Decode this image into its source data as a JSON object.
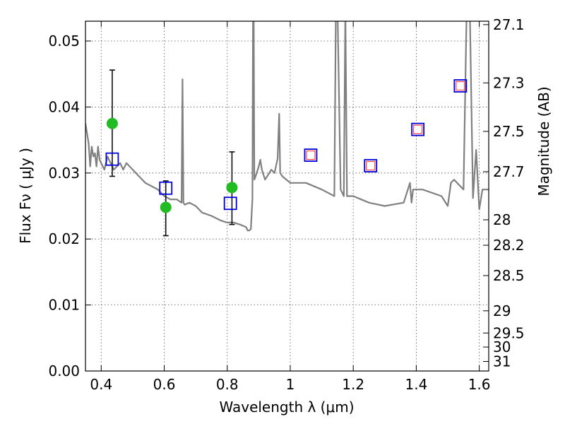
{
  "chart_data": {
    "type": "scatter",
    "title": "",
    "xlabel": "Wavelength  λ (μm)",
    "ylabel": "Flux  Fν  ( μJy )",
    "y2label": "Magnitude (AB)",
    "xlim": [
      0.35,
      1.63
    ],
    "ylim": [
      0.0,
      0.053
    ],
    "grid": true,
    "x_ticks": [
      0.4,
      0.6,
      0.8,
      1.0,
      1.2,
      1.4,
      1.6
    ],
    "x_tick_labels": [
      "0.4",
      "0.6",
      "0.8",
      "1",
      "1.2",
      "1.4",
      "1.6"
    ],
    "y_ticks": [
      0.0,
      0.01,
      0.02,
      0.03,
      0.04,
      0.05
    ],
    "y_tick_labels": [
      "0.00",
      "0.01",
      "0.02",
      "0.03",
      "0.04",
      "0.05"
    ],
    "y2_tick_labels": [
      "27.1",
      "27.3",
      "27.5",
      "27.7",
      "28",
      "28.2",
      "28.5",
      "29",
      "29.5",
      "30",
      "31"
    ],
    "series": [
      {
        "kind": "line",
        "color": "#808080",
        "x": [
          0.35,
          0.36,
          0.365,
          0.37,
          0.375,
          0.38,
          0.385,
          0.39,
          0.395,
          0.4,
          0.41,
          0.42,
          0.43,
          0.44,
          0.45,
          0.46,
          0.47,
          0.48,
          0.5,
          0.52,
          0.54,
          0.56,
          0.58,
          0.6,
          0.62,
          0.64,
          0.655,
          0.658,
          0.661,
          0.665,
          0.68,
          0.7,
          0.72,
          0.75,
          0.78,
          0.8,
          0.82,
          0.84,
          0.86,
          0.865,
          0.87,
          0.875,
          0.88,
          0.882,
          0.884,
          0.886,
          0.89,
          0.9,
          0.905,
          0.91,
          0.92,
          0.94,
          0.95,
          0.96,
          0.965,
          0.968,
          0.975,
          1.0,
          1.05,
          1.1,
          1.14,
          1.145,
          1.15,
          1.16,
          1.17,
          1.175,
          1.18,
          1.2,
          1.25,
          1.3,
          1.36,
          1.38,
          1.385,
          1.39,
          1.42,
          1.48,
          1.5,
          1.51,
          1.52,
          1.55,
          1.56,
          1.57,
          1.58,
          1.59,
          1.6,
          1.61,
          1.63
        ],
        "y": [
          0.0375,
          0.0345,
          0.031,
          0.034,
          0.0325,
          0.033,
          0.031,
          0.034,
          0.032,
          0.0315,
          0.0305,
          0.0325,
          0.0315,
          0.0305,
          0.031,
          0.0315,
          0.0305,
          0.0315,
          0.0305,
          0.0295,
          0.0285,
          0.028,
          0.0275,
          0.0265,
          0.026,
          0.026,
          0.0255,
          0.0442,
          0.0255,
          0.0252,
          0.0255,
          0.025,
          0.024,
          0.0235,
          0.0228,
          0.0225,
          0.0225,
          0.0222,
          0.0218,
          0.0213,
          0.0213,
          0.0215,
          0.026,
          0.055,
          0.055,
          0.029,
          0.0295,
          0.031,
          0.032,
          0.0305,
          0.029,
          0.0305,
          0.03,
          0.0322,
          0.039,
          0.03,
          0.0295,
          0.0285,
          0.0285,
          0.0275,
          0.0265,
          0.055,
          0.055,
          0.0275,
          0.0265,
          0.055,
          0.0265,
          0.0265,
          0.0255,
          0.025,
          0.0255,
          0.0285,
          0.0255,
          0.0275,
          0.0275,
          0.0265,
          0.025,
          0.0285,
          0.029,
          0.0275,
          0.055,
          0.055,
          0.0262,
          0.0335,
          0.0245,
          0.0275,
          0.0275
        ]
      },
      {
        "kind": "points",
        "color": "#22bb22",
        "x": [
          0.435,
          0.605,
          0.815
        ],
        "y": [
          0.0375,
          0.0248,
          0.0278
        ],
        "yerr_low": [
          0.0295,
          0.0205,
          0.0222
        ],
        "yerr_high": [
          0.0456,
          0.0288,
          0.0332
        ]
      },
      {
        "kind": "squares",
        "color": "#0000dd",
        "x": [
          0.435,
          0.605,
          0.81
        ],
        "y": [
          0.0321,
          0.0277,
          0.0254
        ]
      },
      {
        "kind": "squares-with-inner",
        "color": "#0000dd",
        "inner_color": "#ff4444",
        "x": [
          1.065,
          1.255,
          1.405,
          1.54
        ],
        "y": [
          0.0327,
          0.0311,
          0.0366,
          0.0432
        ]
      }
    ]
  }
}
